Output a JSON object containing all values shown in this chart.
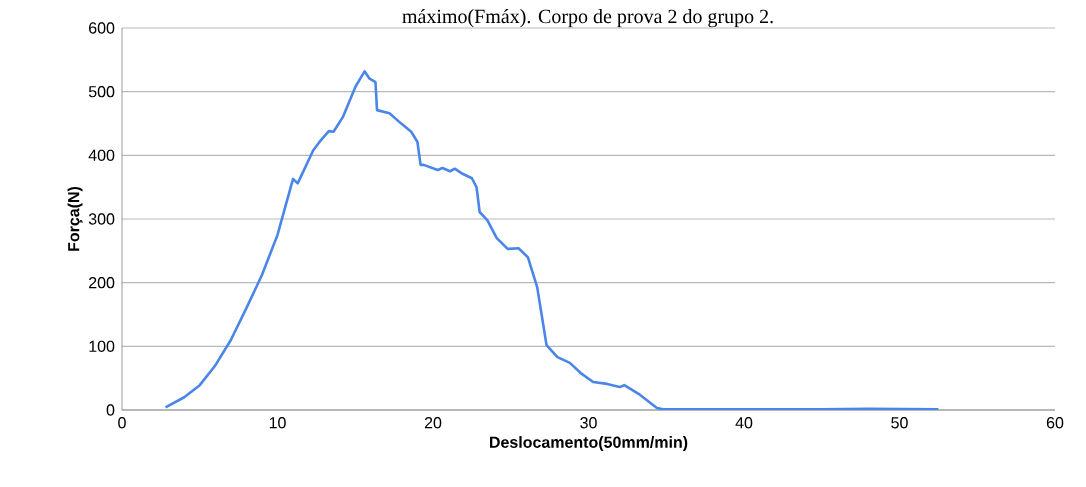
{
  "chart_data": {
    "type": "line",
    "title": "máximo(Fmáx). Corpo de prova 2 do grupo 2.",
    "xlabel": "Deslocamento(50mm/min)",
    "ylabel": "Força(N)",
    "x": [
      2.8,
      4,
      5,
      6,
      7,
      8,
      9,
      10,
      11.0,
      11.3,
      12.3,
      12.7,
      13.3,
      13.6,
      14.2,
      15.0,
      15.6,
      15.9,
      16.3,
      16.4,
      17.2,
      17.9,
      18.6,
      19.0,
      19.2,
      19.4,
      20.3,
      20.6,
      21.1,
      21.4,
      21.9,
      22.5,
      22.8,
      23.0,
      23.5,
      24.1,
      24.8,
      25.5,
      26.1,
      26.7,
      27.3,
      28.0,
      28.8,
      29.5,
      30.3,
      31.2,
      32.0,
      32.3,
      33.3,
      34.4,
      34.8,
      40,
      45,
      48,
      52.5
    ],
    "values": [
      4,
      20,
      39,
      70,
      110,
      160,
      212,
      275,
      363,
      356,
      408,
      421,
      438,
      437,
      460,
      507,
      532,
      521,
      515,
      471,
      466,
      451,
      437,
      421,
      385,
      385,
      377,
      380,
      375,
      379,
      371,
      364,
      350,
      311,
      298,
      270,
      253,
      254,
      240,
      193,
      102,
      83,
      74,
      58,
      44,
      41,
      36,
      39,
      24,
      3,
      1,
      1,
      1,
      2,
      1
    ],
    "color": "#4a86e8",
    "xlim": [
      0,
      60
    ],
    "ylim": [
      0,
      600
    ],
    "xticks": [
      0,
      10,
      20,
      30,
      40,
      50,
      60
    ],
    "yticks": [
      0,
      100,
      200,
      300,
      400,
      500,
      600
    ],
    "grid": "y",
    "line_style": "solid"
  }
}
